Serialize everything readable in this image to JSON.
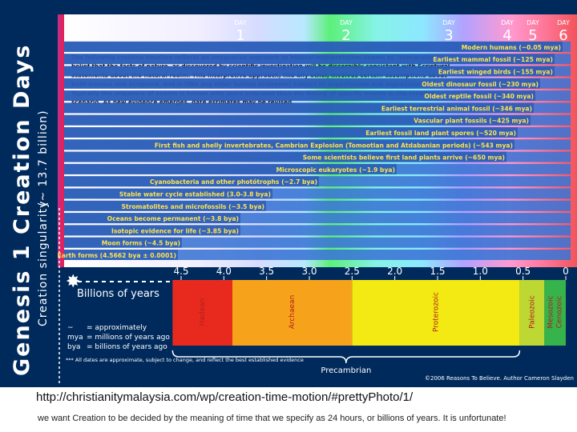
{
  "title": "Genesis 1 Creation Days",
  "singularity_label": "Creation singularity",
  "singularity_age": "(~ 13.7 billion)",
  "intro_lines": [
    "The following creation timeline reflects an integrative approach to biblical interpretation known as \"concordism\",",
    "belief that the facts of nature, as discovered by scientific investigation will be discernibly consistent with Scriptural",
    "statements about the natural realm. This interpretive approach, like any other, involves certain assumptions about",
    "both science and Scripture, and is (like any other human endeavor) subject to imperfection and imprecision.",
    "Typically the sequence of events is known with more precision than the timing of specific events in the creation",
    "scenario. As new evidence emerges, date estimates may be revised."
  ],
  "colors": {
    "background": "#002a5c",
    "bar": "#3a74d4",
    "label_text": "#ffe34d",
    "intro_text": "#111111",
    "stripe_start": "#c22d8a",
    "stripe_end": "#e8204f"
  },
  "chart_data": {
    "type": "bar",
    "orientation": "horizontal",
    "xlabel": "Billions of years",
    "x_reversed": true,
    "xlim": [
      4.6,
      0
    ],
    "x_ticks": [
      "4.5",
      "4.0",
      "3.5",
      "3.0",
      "2.5",
      "2.0",
      "1.5",
      "1.0",
      "0.5",
      "0"
    ],
    "days": [
      {
        "day": "DAY",
        "number": "1",
        "start": 4.5
      },
      {
        "day": "DAY",
        "number": "2",
        "start": 2.5
      },
      {
        "day": "DAY",
        "number": "3",
        "start": 1.3
      },
      {
        "day": "DAY",
        "number": "4",
        "start": 0.7
      },
      {
        "day": "DAY",
        "number": "5",
        "start": 0.4
      },
      {
        "day": "DAY",
        "number": "6",
        "start": 0.15
      }
    ],
    "events": [
      {
        "label": "Earth forms (4.5662 bya ± 0.0001)",
        "value": 4.5662
      },
      {
        "label": "Moon forms (~4.5 bya)",
        "value": 4.5
      },
      {
        "label": "Isotopic evidence for life (~3.85 bya)",
        "value": 3.85
      },
      {
        "label": "Oceans become permanent (~3.8 bya)",
        "value": 3.8
      },
      {
        "label": "Stromatolites and microfossils (~3.5 bya)",
        "value": 3.5
      },
      {
        "label": "Stable water cycle established (3.0-3.8 bya)",
        "value": 3.8
      },
      {
        "label": "Cyanobacteria and other photótrophs (~2.7 bya)",
        "value": 2.7
      },
      {
        "label": "Microscopic eukaryotes (~1.9 bya)",
        "value": 1.9
      },
      {
        "label": "Some scientists believe first land plants arrive (~650 mya)",
        "value": 0.65
      },
      {
        "label": "First fish and shelly invertebrates, Cambrian Explosion (Tomootian and Atdabanian periods) (~543 mya)",
        "value": 0.543
      },
      {
        "label": "Earliest fossil land plant spores (~520 mya)",
        "value": 0.52
      },
      {
        "label": "Vascular plant fossils (~425 mya)",
        "value": 0.425
      },
      {
        "label": "Earliest terrestrial animal fossil (~346 mya)",
        "value": 0.346
      },
      {
        "label": "Oldest reptile fossil (~340 mya)",
        "value": 0.34
      },
      {
        "label": "Oldest dinosaur fossil (~230 mya)",
        "value": 0.23
      },
      {
        "label": "Earliest winged birds (~155 mya)",
        "value": 0.155
      },
      {
        "label": "Earliest mammal fossil (~125 mya)",
        "value": 0.125
      },
      {
        "label": "Modern humans (~0.05 mya)",
        "value": 5e-05
      }
    ],
    "eons": [
      {
        "name": "Hadean",
        "start": 4.6,
        "end": 3.9,
        "color": "#e82a1e"
      },
      {
        "name": "Archaean",
        "start": 3.9,
        "end": 2.5,
        "color": "#f7a21b"
      },
      {
        "name": "Proterozoic",
        "start": 2.5,
        "end": 0.54,
        "color": "#f2ea12"
      },
      {
        "name": "Paleozoic",
        "start": 0.54,
        "end": 0.25,
        "color": "#bdd833"
      },
      {
        "name": "Mesozoic Cenozoic",
        "start": 0.25,
        "end": 0.0,
        "color": "#36b34a"
      }
    ],
    "precambrian": {
      "label": "Precambrian",
      "start": 4.6,
      "end": 0.54
    }
  },
  "legend": [
    {
      "symbol": "~",
      "text": "= approximately"
    },
    {
      "symbol": "mya",
      "text": "= millions of years ago"
    },
    {
      "symbol": "bya",
      "text": "= billions of years ago"
    }
  ],
  "footnote": "*** All dates are approximate, subject to change, and reflect the best established evidence",
  "copyright": "©2006 Reasons To Believe.  Author Cameron Slayden",
  "url": "http://christianitymalaysia.com/wp/creation-time-motion/#prettyPhoto/1/",
  "caption": "we want Creation to be decided by the meaning of time that we specify as 24 hours, or billions of years. It is unfortunate!"
}
